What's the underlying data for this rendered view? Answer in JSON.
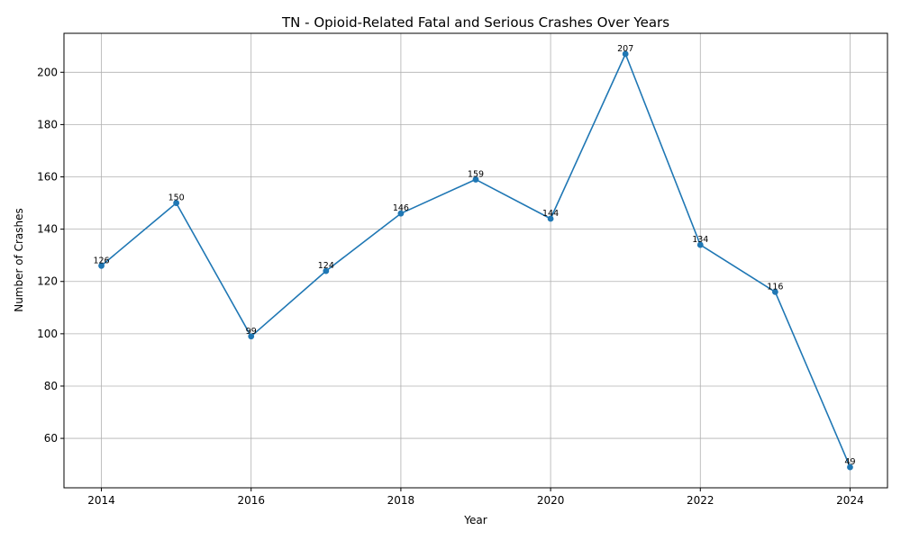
{
  "chart_data": {
    "type": "line",
    "title": "TN - Opioid-Related Fatal and Serious Crashes Over Years",
    "xlabel": "Year",
    "ylabel": "Number of Crashes",
    "x": [
      2014,
      2015,
      2016,
      2017,
      2018,
      2019,
      2020,
      2021,
      2022,
      2023,
      2024
    ],
    "values": [
      126,
      150,
      99,
      124,
      146,
      159,
      144,
      207,
      134,
      116,
      49
    ],
    "xlim": [
      2013.5,
      2024.5
    ],
    "ylim": [
      41.1,
      214.9
    ],
    "xticks": [
      2014,
      2016,
      2018,
      2020,
      2022,
      2024
    ],
    "yticks": [
      60,
      80,
      100,
      120,
      140,
      160,
      180,
      200
    ],
    "grid": true,
    "markers": true,
    "data_labels": true,
    "color": "#1f77b4"
  }
}
